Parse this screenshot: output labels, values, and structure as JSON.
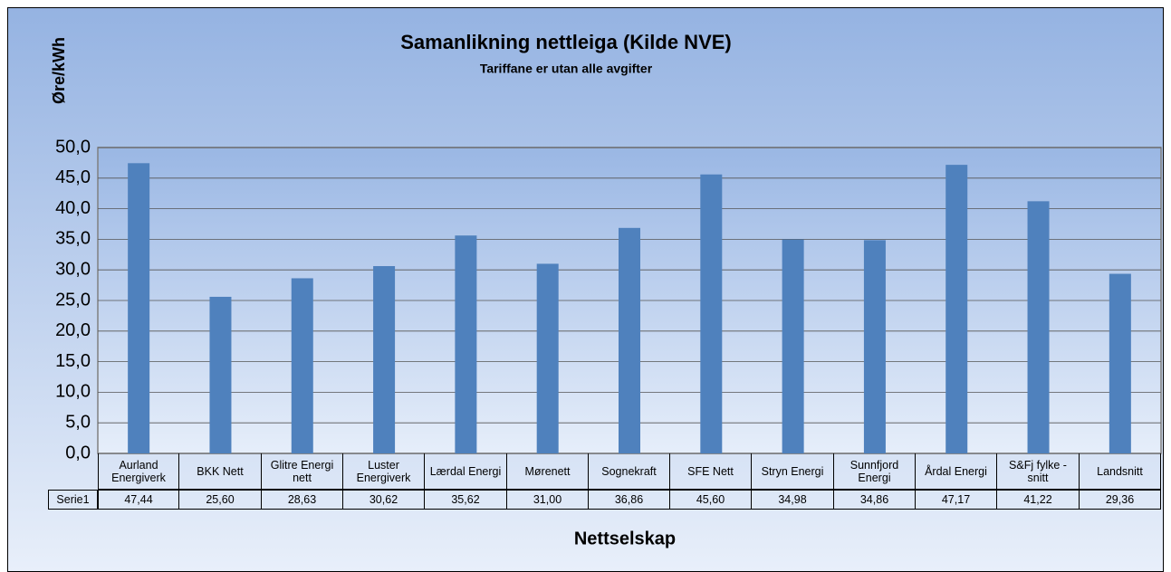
{
  "chart_data": {
    "type": "bar",
    "title": "Samanlikning nettleiga (Kilde NVE)",
    "subtitle": "Tariffane er utan alle avgifter",
    "y_label": "Øre/kWh",
    "x_label": "Nettselskap",
    "categories": [
      "Aurland Energiverk",
      "BKK Nett",
      "Glitre Energi nett",
      "Luster Energiverk",
      "Lærdal Energi",
      "Mørenett",
      "Sognekraft",
      "SFE Nett",
      "Stryn Energi",
      "Sunnfjord Energi",
      "Årdal Energi",
      "S&Fj fylke - snitt",
      "Landsnitt"
    ],
    "series": [
      {
        "name": "Serie1",
        "color": "#4f81bd",
        "values": [
          47.44,
          25.6,
          28.63,
          30.62,
          35.62,
          31.0,
          36.86,
          45.6,
          34.98,
          34.86,
          47.17,
          41.22,
          29.36
        ],
        "value_labels": [
          "47,44",
          "25,60",
          "28,63",
          "30,62",
          "35,62",
          "31,00",
          "36,86",
          "45,60",
          "34,98",
          "34,86",
          "47,17",
          "41,22",
          "29,36"
        ]
      }
    ],
    "ylim": [
      0,
      50
    ],
    "yticks": [
      {
        "value": 0,
        "label": "0,0"
      },
      {
        "value": 5,
        "label": "5,0"
      },
      {
        "value": 10,
        "label": "10,0"
      },
      {
        "value": 15,
        "label": "15,0"
      },
      {
        "value": 20,
        "label": "20,0"
      },
      {
        "value": 25,
        "label": "25,0"
      },
      {
        "value": 30,
        "label": "30,0"
      },
      {
        "value": 35,
        "label": "35,0"
      },
      {
        "value": 40,
        "label": "40,0"
      },
      {
        "value": 45,
        "label": "45,0"
      },
      {
        "value": 50,
        "label": "50,0"
      }
    ],
    "grid": true
  }
}
